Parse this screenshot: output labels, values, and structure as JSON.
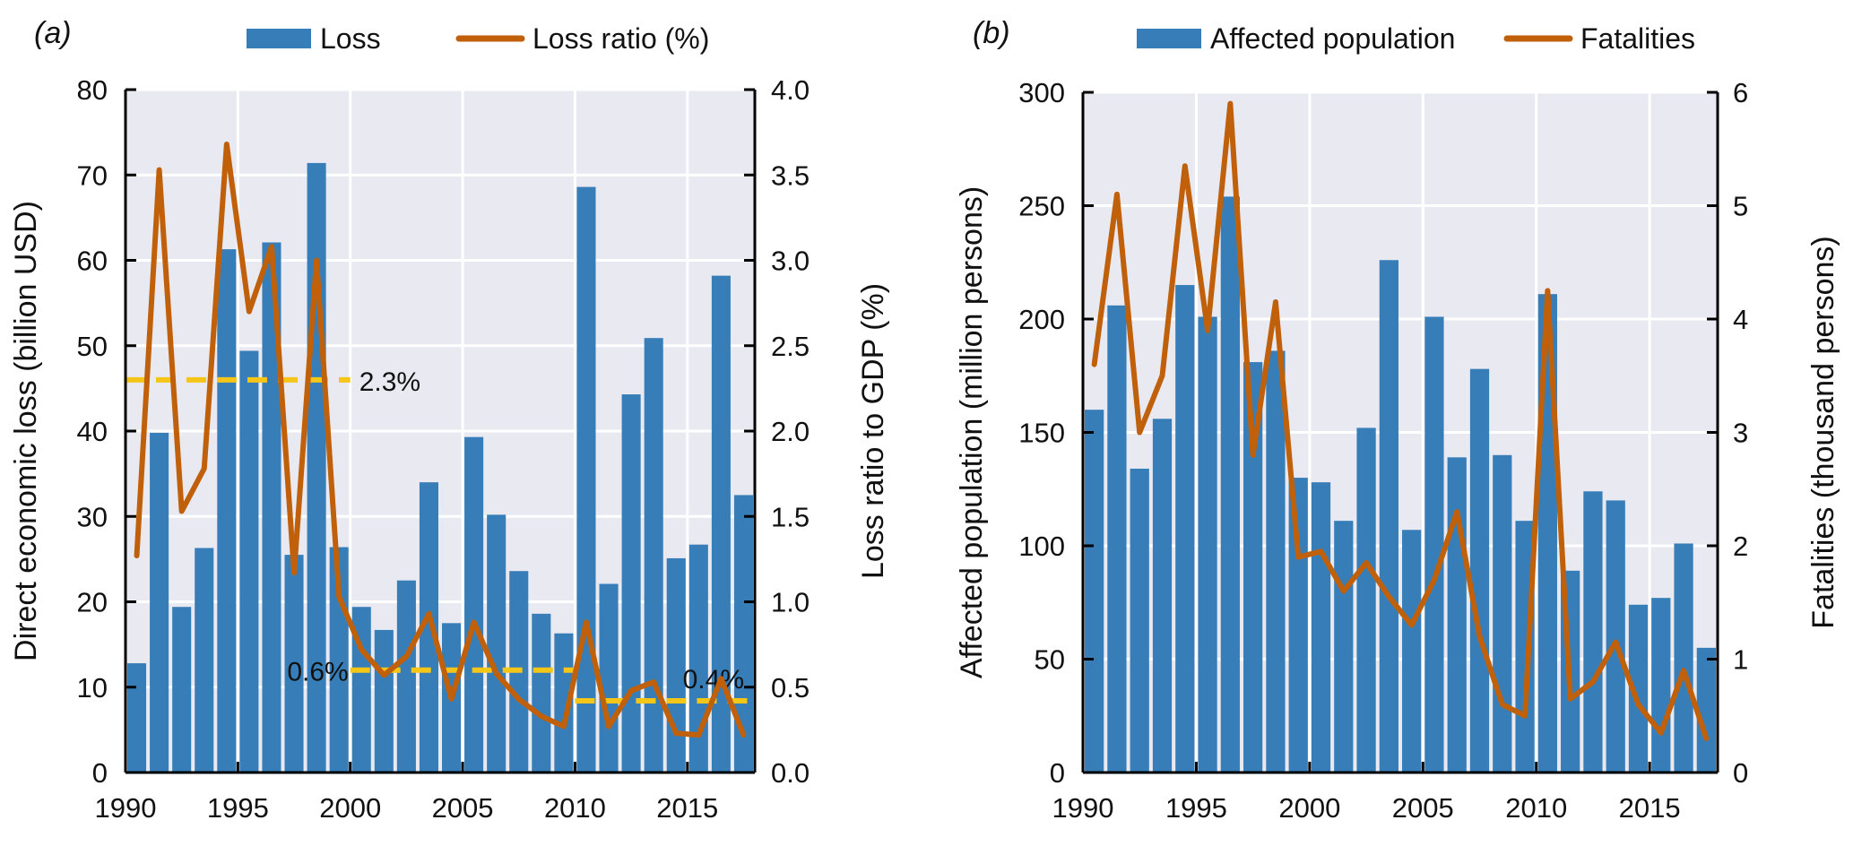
{
  "chart_data": [
    {
      "type": "bar",
      "panel_label": "(a)",
      "title": "",
      "x": [
        1990,
        1991,
        1992,
        1993,
        1994,
        1995,
        1996,
        1997,
        1998,
        1999,
        2000,
        2001,
        2002,
        2003,
        2004,
        2005,
        2006,
        2007,
        2008,
        2009,
        2010,
        2011,
        2012,
        2013,
        2014,
        2015,
        2016,
        2017
      ],
      "xticks": [
        "1990",
        "1995",
        "2000",
        "2005",
        "2010",
        "2015"
      ],
      "xtick_values": [
        1990,
        1995,
        2000,
        2005,
        2010,
        2015
      ],
      "ylabel": "Direct economic loss (billion USD)",
      "ylim": [
        0,
        80
      ],
      "yticks": [
        "0",
        "10",
        "20",
        "30",
        "40",
        "50",
        "60",
        "70",
        "80"
      ],
      "y2label": "Loss ratio to GDP (%)",
      "y2lim": [
        0,
        4.0
      ],
      "y2ticks": [
        "0.0",
        "0.5",
        "1.0",
        "1.5",
        "2.0",
        "2.5",
        "3.0",
        "3.5",
        "4.0"
      ],
      "grid": true,
      "legend_position": "top",
      "series": [
        {
          "name": "Loss",
          "kind": "bar",
          "axis": "left",
          "color": "#377EB8",
          "values": [
            12.8,
            39.8,
            19.4,
            26.3,
            61.3,
            49.4,
            62.1,
            25.5,
            71.4,
            26.4,
            19.4,
            16.7,
            22.5,
            34.0,
            17.5,
            39.3,
            30.2,
            23.6,
            18.6,
            16.3,
            68.6,
            22.1,
            44.3,
            50.9,
            25.1,
            26.7,
            58.2,
            32.5
          ]
        },
        {
          "name": "Loss ratio (%)",
          "kind": "line",
          "axis": "right",
          "color": "#C0600A",
          "values": [
            1.27,
            3.53,
            1.53,
            1.78,
            3.68,
            2.7,
            3.08,
            1.17,
            3.0,
            1.03,
            0.72,
            0.57,
            0.68,
            0.93,
            0.43,
            0.88,
            0.58,
            0.43,
            0.33,
            0.27,
            0.88,
            0.27,
            0.48,
            0.53,
            0.23,
            0.22,
            0.55,
            0.22
          ]
        }
      ],
      "annotations": [
        {
          "text": "2.3%",
          "kind": "mean-line",
          "value": 2.3,
          "x_from": 1990,
          "x_to": 2000,
          "color": "#F5C518"
        },
        {
          "text": "0.6%",
          "kind": "mean-line",
          "value": 0.6,
          "x_from": 2000,
          "x_to": 2010,
          "color": "#F5C518"
        },
        {
          "text": "0.4%",
          "kind": "mean-line",
          "value": 0.42,
          "x_from": 2010,
          "x_to": 2017,
          "color": "#F5C518"
        }
      ]
    },
    {
      "type": "bar",
      "panel_label": "(b)",
      "title": "",
      "x": [
        1990,
        1991,
        1992,
        1993,
        1994,
        1995,
        1996,
        1997,
        1998,
        1999,
        2000,
        2001,
        2002,
        2003,
        2004,
        2005,
        2006,
        2007,
        2008,
        2009,
        2010,
        2011,
        2012,
        2013,
        2014,
        2015,
        2016,
        2017
      ],
      "xticks": [
        "1990",
        "1995",
        "2000",
        "2005",
        "2010",
        "2015"
      ],
      "xtick_values": [
        1990,
        1995,
        2000,
        2005,
        2010,
        2015
      ],
      "ylabel": "Affected population (million persons)",
      "ylim": [
        0,
        300
      ],
      "yticks": [
        "0",
        "50",
        "100",
        "150",
        "200",
        "250",
        "300"
      ],
      "y2label": "Fatalities (thousand persons)",
      "y2lim": [
        0,
        6
      ],
      "y2ticks": [
        "0",
        "1",
        "2",
        "3",
        "4",
        "5",
        "6"
      ],
      "grid": true,
      "legend_position": "top",
      "series": [
        {
          "name": "Affected population",
          "kind": "bar",
          "axis": "left",
          "color": "#377EB8",
          "values": [
            160,
            206,
            134,
            156,
            215,
            201,
            254,
            181,
            186,
            130,
            128,
            111,
            152,
            226,
            107,
            201,
            139,
            178,
            140,
            111,
            211,
            89,
            124,
            120,
            74,
            77,
            101,
            55
          ]
        },
        {
          "name": "Fatalities",
          "kind": "line",
          "axis": "right",
          "color": "#C0600A",
          "values": [
            3.6,
            5.1,
            3.0,
            3.5,
            5.35,
            3.9,
            5.9,
            2.8,
            4.15,
            1.9,
            1.95,
            1.6,
            1.85,
            1.55,
            1.3,
            1.7,
            2.3,
            1.2,
            0.6,
            0.5,
            4.25,
            0.65,
            0.8,
            1.15,
            0.6,
            0.35,
            0.9,
            0.3
          ]
        }
      ],
      "annotations": []
    }
  ]
}
